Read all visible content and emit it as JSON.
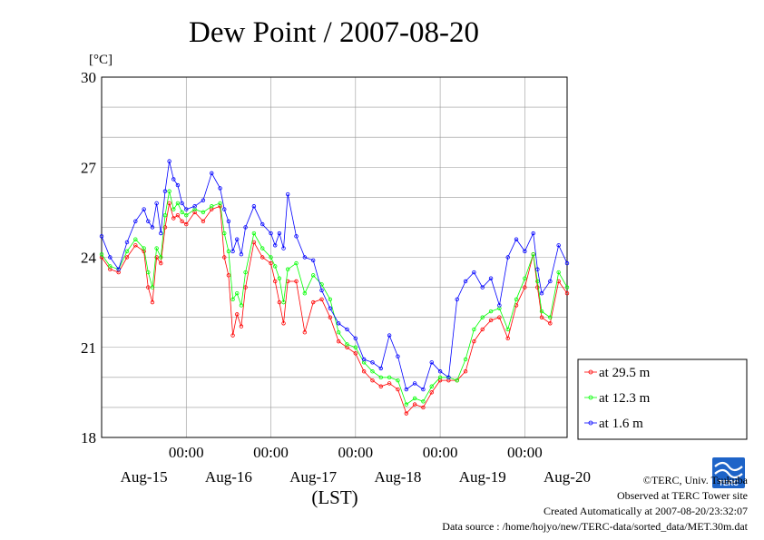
{
  "title": "Dew Point / 2007-08-20",
  "chart_data": {
    "type": "line",
    "title": "Dew Point / 2007-08-20",
    "ylabel": "[°C]",
    "xlabel": "(LST)",
    "ylim": [
      18,
      30
    ],
    "y_ticks": [
      18,
      21,
      24,
      27,
      30
    ],
    "x_unit": "days since start of Aug-14",
    "xlim": [
      0.5,
      6.0
    ],
    "x_time_ticks": [
      {
        "pos": 1.5,
        "label": "00:00"
      },
      {
        "pos": 2.5,
        "label": "00:00"
      },
      {
        "pos": 3.5,
        "label": "00:00"
      },
      {
        "pos": 4.5,
        "label": "00:00"
      },
      {
        "pos": 5.5,
        "label": "00:00"
      }
    ],
    "x_date_labels": [
      {
        "pos": 1.0,
        "label": "Aug-15"
      },
      {
        "pos": 2.0,
        "label": "Aug-16"
      },
      {
        "pos": 3.0,
        "label": "Aug-17"
      },
      {
        "pos": 4.0,
        "label": "Aug-18"
      },
      {
        "pos": 5.0,
        "label": "Aug-19"
      },
      {
        "pos": 6.0,
        "label": "Aug-20"
      }
    ],
    "grid": true,
    "legend": "right",
    "series": [
      {
        "name": "at 29.5 m",
        "color": "#ff0000",
        "x": [
          0.5,
          0.6,
          0.7,
          0.8,
          0.9,
          1.0,
          1.05,
          1.1,
          1.15,
          1.2,
          1.25,
          1.3,
          1.35,
          1.4,
          1.45,
          1.5,
          1.6,
          1.7,
          1.8,
          1.9,
          1.95,
          2.0,
          2.05,
          2.1,
          2.15,
          2.2,
          2.3,
          2.4,
          2.5,
          2.55,
          2.6,
          2.65,
          2.7,
          2.8,
          2.9,
          3.0,
          3.1,
          3.2,
          3.3,
          3.4,
          3.5,
          3.6,
          3.7,
          3.8,
          3.9,
          4.0,
          4.1,
          4.2,
          4.3,
          4.4,
          4.5,
          4.6,
          4.7,
          4.8,
          4.9,
          5.0,
          5.1,
          5.2,
          5.3,
          5.4,
          5.5,
          5.6,
          5.65,
          5.7,
          5.8,
          5.9,
          6.0
        ],
        "y": [
          24.0,
          23.6,
          23.5,
          24.0,
          24.4,
          24.2,
          23.0,
          22.5,
          24.0,
          23.8,
          25.0,
          25.8,
          25.3,
          25.4,
          25.2,
          25.1,
          25.5,
          25.2,
          25.6,
          25.7,
          24.0,
          23.4,
          21.4,
          22.1,
          21.7,
          23.0,
          24.5,
          24.0,
          23.8,
          23.2,
          22.5,
          21.8,
          23.2,
          23.2,
          21.5,
          22.5,
          22.6,
          22.0,
          21.2,
          21.0,
          20.8,
          20.2,
          19.9,
          19.7,
          19.8,
          19.6,
          18.8,
          19.1,
          19.0,
          19.5,
          19.9,
          19.9,
          19.9,
          20.2,
          21.2,
          21.6,
          21.9,
          22.0,
          21.3,
          22.4,
          23.0,
          24.1,
          23.0,
          22.0,
          21.8,
          23.2,
          22.8
        ]
      },
      {
        "name": "at 12.3 m",
        "color": "#00ff00",
        "x": [
          0.5,
          0.6,
          0.7,
          0.8,
          0.9,
          1.0,
          1.05,
          1.1,
          1.15,
          1.2,
          1.25,
          1.3,
          1.35,
          1.4,
          1.45,
          1.5,
          1.6,
          1.7,
          1.8,
          1.9,
          1.95,
          2.0,
          2.05,
          2.1,
          2.15,
          2.2,
          2.3,
          2.4,
          2.5,
          2.55,
          2.6,
          2.65,
          2.7,
          2.8,
          2.9,
          3.0,
          3.1,
          3.2,
          3.3,
          3.4,
          3.5,
          3.6,
          3.7,
          3.8,
          3.9,
          4.0,
          4.1,
          4.2,
          4.3,
          4.4,
          4.5,
          4.6,
          4.7,
          4.8,
          4.9,
          5.0,
          5.1,
          5.2,
          5.3,
          5.4,
          5.5,
          5.6,
          5.65,
          5.7,
          5.8,
          5.9,
          6.0
        ],
        "y": [
          24.1,
          23.7,
          23.6,
          24.2,
          24.6,
          24.3,
          23.5,
          23.0,
          24.3,
          24.0,
          25.4,
          26.2,
          25.6,
          25.8,
          25.5,
          25.4,
          25.6,
          25.5,
          25.7,
          25.8,
          24.8,
          24.2,
          22.6,
          22.8,
          22.4,
          23.5,
          24.8,
          24.3,
          24.0,
          23.7,
          23.3,
          22.5,
          23.6,
          23.8,
          22.8,
          23.4,
          23.1,
          22.6,
          21.5,
          21.1,
          21.0,
          20.5,
          20.2,
          20.0,
          20.0,
          19.9,
          19.1,
          19.3,
          19.2,
          19.7,
          20.0,
          20.0,
          19.9,
          20.6,
          21.6,
          22.0,
          22.2,
          22.3,
          21.6,
          22.6,
          23.3,
          24.1,
          23.2,
          22.2,
          22.0,
          23.5,
          23.0
        ]
      },
      {
        "name": "at 1.6 m",
        "color": "#0000ff",
        "x": [
          0.5,
          0.6,
          0.7,
          0.8,
          0.9,
          1.0,
          1.05,
          1.1,
          1.15,
          1.2,
          1.25,
          1.3,
          1.35,
          1.4,
          1.45,
          1.5,
          1.6,
          1.7,
          1.8,
          1.9,
          1.95,
          2.0,
          2.05,
          2.1,
          2.15,
          2.2,
          2.3,
          2.4,
          2.5,
          2.55,
          2.6,
          2.65,
          2.7,
          2.8,
          2.9,
          3.0,
          3.1,
          3.2,
          3.3,
          3.4,
          3.5,
          3.6,
          3.7,
          3.8,
          3.9,
          4.0,
          4.1,
          4.2,
          4.3,
          4.4,
          4.5,
          4.6,
          4.7,
          4.8,
          4.9,
          5.0,
          5.1,
          5.2,
          5.3,
          5.4,
          5.5,
          5.6,
          5.65,
          5.7,
          5.8,
          5.9,
          6.0
        ],
        "y": [
          24.7,
          24.0,
          23.6,
          24.5,
          25.2,
          25.6,
          25.2,
          25.0,
          25.8,
          24.8,
          26.2,
          27.2,
          26.6,
          26.4,
          25.8,
          25.6,
          25.7,
          25.9,
          26.8,
          26.3,
          25.6,
          25.2,
          24.2,
          24.6,
          24.1,
          25.0,
          25.7,
          25.1,
          24.8,
          24.4,
          24.8,
          24.3,
          26.1,
          24.7,
          24.0,
          23.9,
          22.9,
          22.3,
          21.8,
          21.6,
          21.3,
          20.6,
          20.5,
          20.3,
          21.4,
          20.7,
          19.6,
          19.8,
          19.6,
          20.5,
          20.2,
          20.0,
          22.6,
          23.2,
          23.5,
          23.0,
          23.3,
          22.4,
          24.0,
          24.6,
          24.2,
          24.8,
          23.6,
          22.8,
          23.2,
          24.4,
          23.8
        ]
      }
    ]
  },
  "credits": {
    "copyright": "©TERC, Univ. Tsukuba",
    "observed": "Observed at TERC Tower site",
    "created": "Created Automatically at 2007-08-20/23:32:07",
    "source": "Data source : /home/hojyo/new/TERC-data/sorted_data/MET.30m.dat"
  },
  "logo_text": "TERC"
}
